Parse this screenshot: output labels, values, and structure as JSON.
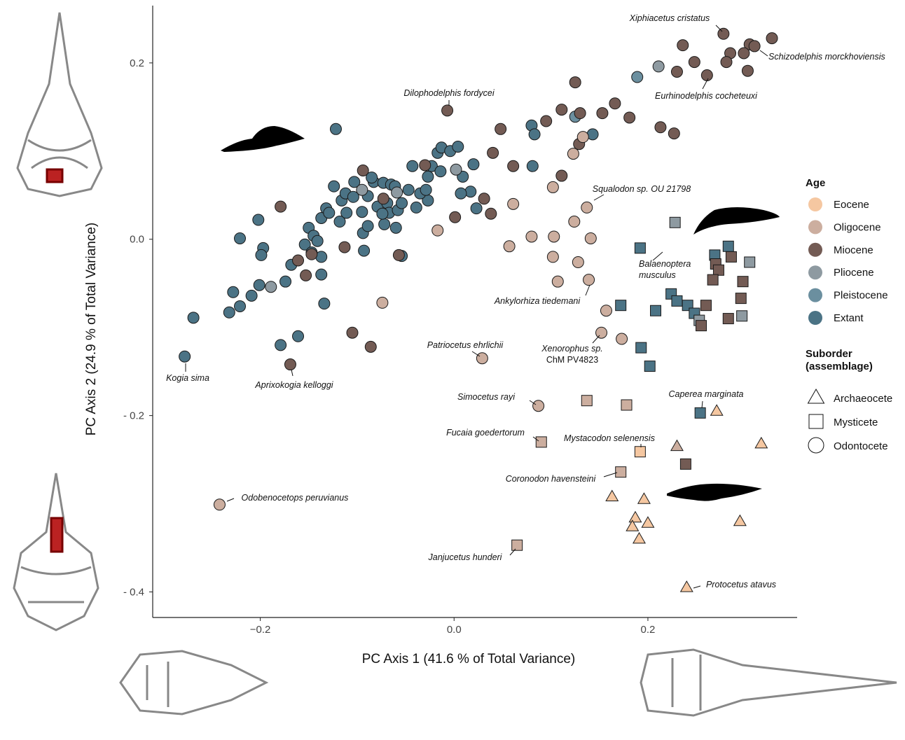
{
  "chart_data": {
    "type": "scatter",
    "x_label": "PC Axis 1 (41.6 % of Total Variance)",
    "y_label": "PC Axis 2 (24.9 % of Total Variance)",
    "xlim": [
      -0.311,
      0.354
    ],
    "ylim": [
      -0.429,
      0.265
    ],
    "xticks": [
      {
        "value": -0.2,
        "label": "−0.2"
      },
      {
        "value": 0,
        "label": "0.0"
      },
      0.2
    ],
    "yticks": [
      {
        "value": -0.4,
        "label": "- 0.4"
      },
      {
        "value": -0.2,
        "label": "- 0.2"
      },
      {
        "value": 0,
        "label": "0.0"
      },
      0.2
    ],
    "legend": {
      "age": {
        "title": "Age",
        "items": [
          {
            "name": "Eocene",
            "color": "#f5c7a1"
          },
          {
            "name": "Oligocene",
            "color": "#ccae9f"
          },
          {
            "name": "Miocene",
            "color": "#735b54"
          },
          {
            "name": "Pliocene",
            "color": "#8e9aa1"
          },
          {
            "name": "Pleistocene",
            "color": "#6b8f9f"
          },
          {
            "name": "Extant",
            "color": "#4b7385"
          }
        ]
      },
      "suborder": {
        "title": [
          "Suborder",
          "(assemblage)"
        ],
        "items": [
          {
            "name": "Archaeocete",
            "shape": "triangle"
          },
          {
            "name": "Mysticete",
            "shape": "square"
          },
          {
            "name": "Odontocete",
            "shape": "circle"
          }
        ]
      }
    },
    "series": [
      {
        "age": "Extant",
        "suborder": "Odontocete",
        "x": [
          -0.269,
          -0.278,
          -0.221,
          -0.202,
          -0.197,
          -0.199,
          -0.201,
          -0.209,
          -0.221,
          -0.232,
          -0.228,
          -0.174,
          -0.168,
          -0.161,
          -0.179,
          -0.154,
          -0.15,
          -0.145,
          -0.147,
          -0.137,
          -0.137,
          -0.134,
          -0.141,
          -0.137,
          -0.132,
          -0.129,
          -0.124,
          -0.116,
          -0.118,
          -0.112,
          -0.111,
          -0.104,
          -0.103,
          -0.095,
          -0.094,
          -0.093,
          -0.089,
          -0.083,
          -0.079,
          -0.073,
          -0.072,
          -0.069,
          -0.067,
          -0.065,
          -0.061,
          -0.058,
          -0.06,
          -0.054,
          -0.047,
          -0.043,
          -0.039,
          -0.027,
          -0.027,
          -0.023,
          -0.017,
          -0.014,
          -0.013,
          -0.004,
          0.004,
          0.009,
          0.017,
          0.02,
          0.023,
          0.007,
          -0.035,
          -0.054,
          -0.085,
          -0.122,
          0.08,
          0.083,
          0.081,
          0.143,
          -0.074,
          -0.089,
          -0.029
        ],
        "y": [
          -0.089,
          -0.133,
          0.001,
          0.022,
          -0.01,
          -0.018,
          -0.052,
          -0.064,
          -0.076,
          -0.083,
          -0.06,
          -0.048,
          -0.029,
          -0.11,
          -0.12,
          -0.006,
          0.013,
          0.004,
          -0.015,
          -0.02,
          -0.04,
          -0.073,
          -0.002,
          0.024,
          0.035,
          0.03,
          0.06,
          0.044,
          0.02,
          0.052,
          0.03,
          0.048,
          0.065,
          0.031,
          0.007,
          -0.013,
          0.049,
          0.065,
          0.037,
          0.064,
          0.017,
          0.041,
          0.03,
          0.062,
          0.06,
          0.033,
          0.013,
          -0.019,
          0.056,
          0.083,
          0.036,
          0.071,
          0.044,
          0.083,
          0.098,
          0.077,
          0.104,
          0.1,
          0.105,
          0.071,
          0.054,
          0.085,
          0.035,
          0.052,
          0.052,
          0.041,
          0.07,
          0.125,
          0.129,
          0.119,
          0.083,
          0.119,
          0.029,
          0.015,
          0.056
        ]
      },
      {
        "age": "Pleistocene",
        "suborder": "Odontocete",
        "x": [
          0.189,
          0.125
        ],
        "y": [
          0.184,
          0.139
        ]
      },
      {
        "age": "Pliocene",
        "suborder": "Odontocete",
        "x": [
          0.211,
          -0.189,
          -0.095,
          0.002,
          -0.059
        ],
        "y": [
          0.196,
          -0.054,
          0.056,
          0.079,
          0.053
        ]
      },
      {
        "age": "Miocene",
        "suborder": "Odontocete",
        "x": [
          0.278,
          0.328,
          0.305,
          0.31,
          0.299,
          0.285,
          0.236,
          0.248,
          0.281,
          0.303,
          0.23,
          0.261,
          0.125,
          -0.007,
          0.166,
          0.153,
          0.111,
          0.13,
          0.095,
          0.181,
          0.213,
          0.227,
          0.048,
          0.129,
          0.04,
          0.061,
          0.111,
          -0.094,
          -0.179,
          -0.073,
          0.001,
          0.038,
          0.031,
          -0.03,
          -0.057,
          -0.113,
          -0.147,
          -0.161,
          -0.153,
          -0.105,
          -0.086,
          -0.169
        ],
        "y": [
          0.233,
          0.228,
          0.221,
          0.219,
          0.211,
          0.211,
          0.22,
          0.201,
          0.201,
          0.191,
          0.19,
          0.186,
          0.178,
          0.146,
          0.154,
          0.143,
          0.147,
          0.143,
          0.134,
          0.138,
          0.127,
          0.12,
          0.125,
          0.108,
          0.098,
          0.083,
          0.072,
          0.078,
          0.037,
          0.046,
          0.025,
          0.029,
          0.046,
          0.084,
          -0.018,
          -0.009,
          -0.017,
          -0.024,
          -0.041,
          -0.106,
          -0.122,
          -0.142
        ]
      },
      {
        "age": "Oligocene",
        "suborder": "Odontocete",
        "x": [
          0.133,
          0.123,
          0.102,
          0.137,
          0.061,
          0.124,
          0.103,
          0.08,
          0.141,
          0.057,
          0.102,
          0.128,
          0.107,
          0.139,
          0.157,
          0.152,
          0.173,
          0.029,
          0.087,
          -0.017,
          -0.074,
          -0.242
        ],
        "y": [
          0.116,
          0.097,
          0.059,
          0.036,
          0.04,
          0.02,
          0.003,
          0.003,
          0.001,
          -0.008,
          -0.02,
          -0.026,
          -0.048,
          -0.046,
          -0.081,
          -0.106,
          -0.113,
          -0.135,
          -0.189,
          0.01,
          -0.072,
          -0.301
        ]
      },
      {
        "age": "Extant",
        "suborder": "Mysticete",
        "x": [
          0.192,
          0.269,
          0.283,
          0.172,
          0.208,
          0.224,
          0.23,
          0.241,
          0.248,
          0.193,
          0.202,
          0.254
        ],
        "y": [
          -0.01,
          -0.018,
          -0.008,
          -0.075,
          -0.081,
          -0.062,
          -0.07,
          -0.075,
          -0.084,
          -0.123,
          -0.144,
          -0.197
        ]
      },
      {
        "age": "Pliocene",
        "suborder": "Mysticete",
        "x": [
          0.228,
          0.305,
          0.253,
          0.297
        ],
        "y": [
          0.019,
          -0.026,
          -0.092,
          -0.087
        ]
      },
      {
        "age": "Miocene",
        "suborder": "Mysticete",
        "x": [
          0.27,
          0.273,
          0.286,
          0.267,
          0.298,
          0.26,
          0.255,
          0.296,
          0.283,
          0.239
        ],
        "y": [
          -0.028,
          -0.035,
          -0.02,
          -0.046,
          -0.048,
          -0.075,
          -0.098,
          -0.067,
          -0.09,
          -0.255
        ]
      },
      {
        "age": "Oligocene",
        "suborder": "Mysticete",
        "x": [
          0.137,
          0.178,
          0.09,
          0.172,
          0.065
        ],
        "y": [
          -0.183,
          -0.188,
          -0.23,
          -0.264,
          -0.347
        ]
      },
      {
        "age": "Eocene",
        "suborder": "Mysticete",
        "x": [
          0.192
        ],
        "y": [
          -0.241
        ]
      },
      {
        "age": "Oligocene",
        "suborder": "Archaeocete",
        "x": [
          0.23
        ],
        "y": [
          -0.235
        ]
      },
      {
        "age": "Eocene",
        "suborder": "Archaeocete",
        "x": [
          0.271,
          0.317,
          0.163,
          0.196,
          0.187,
          0.2,
          0.184,
          0.191,
          0.295,
          0.24
        ],
        "y": [
          -0.195,
          -0.232,
          -0.292,
          -0.295,
          -0.316,
          -0.322,
          -0.326,
          -0.34,
          -0.32,
          -0.395
        ]
      }
    ],
    "annotations": [
      [
        "Xiphiacetus cristatus"
      ],
      [
        "Schizodelphis morckhoviensis"
      ],
      [
        "Eurhinodelphis cocheteuxi"
      ],
      [
        "Dilophodelphis fordycei"
      ],
      [
        "Squalodon sp. OU 21798"
      ],
      [
        "Balaenoptera",
        "musculus"
      ],
      [
        "Ankylorhiza tiedemani"
      ],
      [
        "Xenorophus sp.",
        "ChM PV4823"
      ],
      [
        "Patriocetus ehrlichii"
      ],
      [
        "Kogia sima"
      ],
      [
        "Aprixokogia kelloggi"
      ],
      [
        "Simocetus rayi"
      ],
      [
        "Caperea marginata"
      ],
      [
        "Fucaia goedertorum"
      ],
      [
        "Mystacodon selenensis"
      ],
      [
        "Coronodon havensteini"
      ],
      [
        "Odobenocetops peruvianus"
      ],
      [
        "Janjucetus hunderi"
      ],
      [
        "Protocetus atavus"
      ]
    ]
  }
}
